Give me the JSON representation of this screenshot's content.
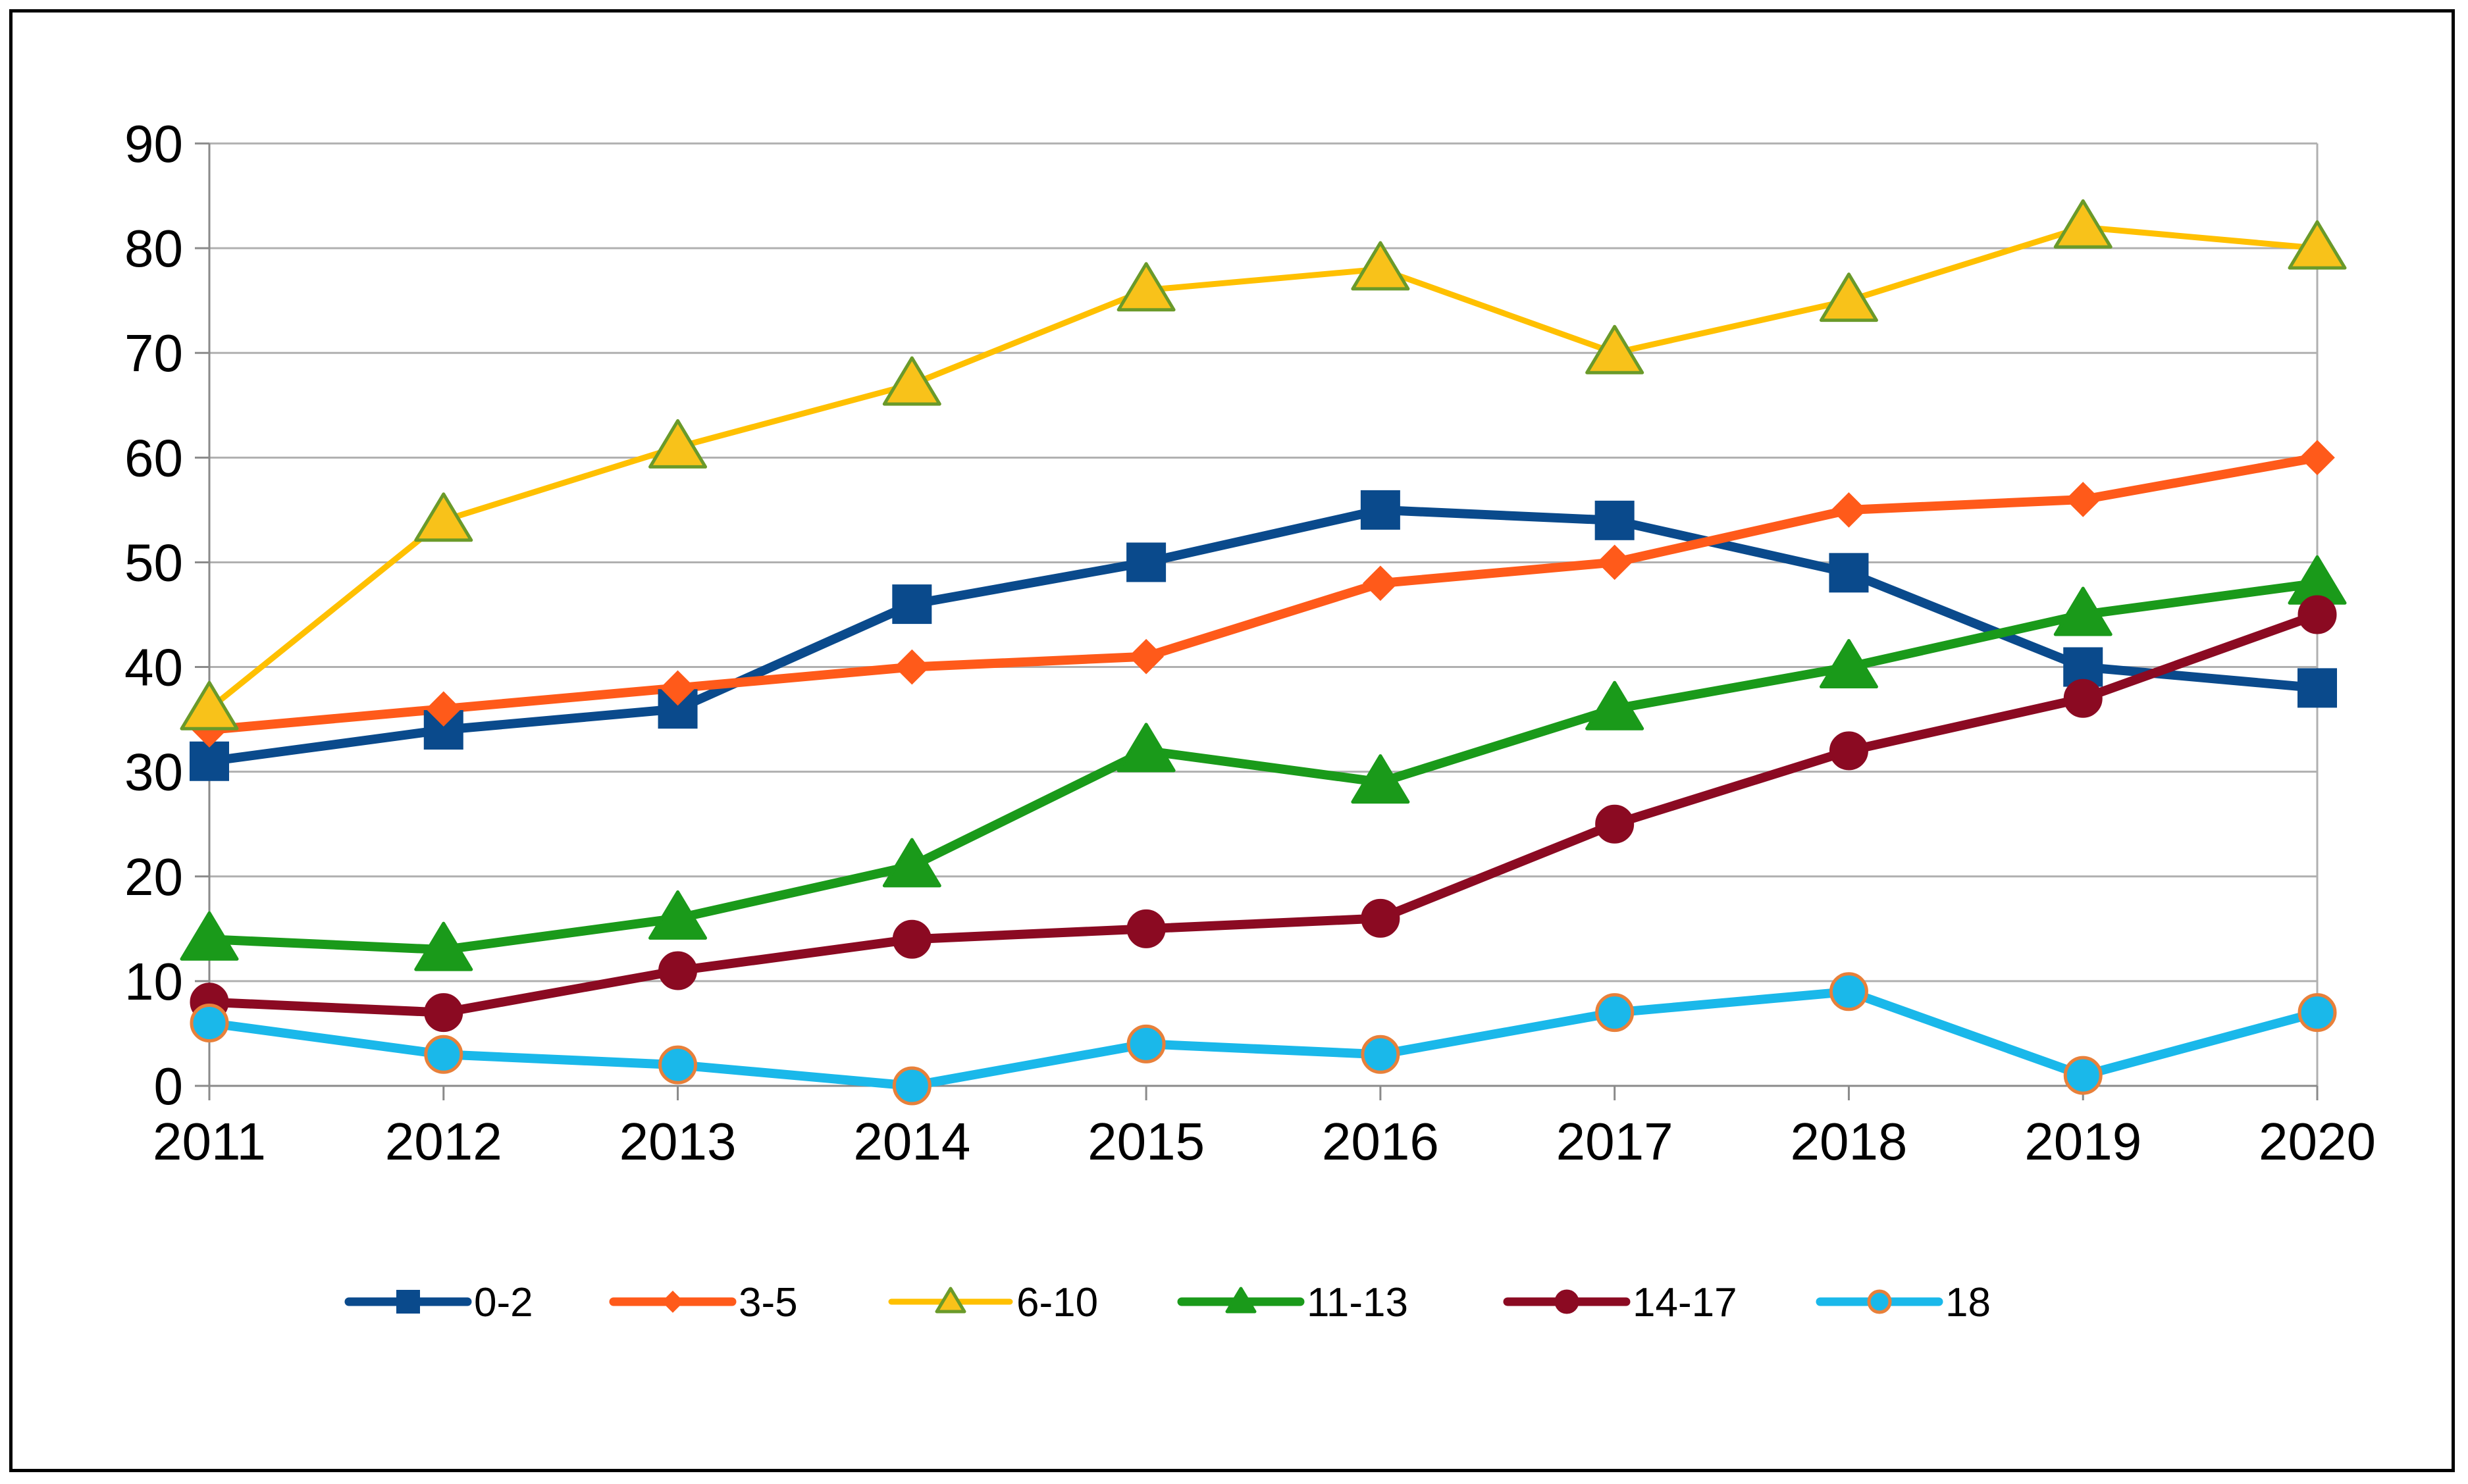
{
  "chart_data": {
    "type": "line",
    "title": "",
    "xlabel": "",
    "ylabel": "",
    "categories": [
      "2011",
      "2012",
      "2013",
      "2014",
      "2015",
      "2016",
      "2017",
      "2018",
      "2019",
      "2020"
    ],
    "ylim": [
      0,
      90
    ],
    "yticks": [
      0,
      10,
      20,
      30,
      40,
      50,
      60,
      70,
      80,
      90
    ],
    "yticklabels": [
      "0",
      "10",
      "20",
      "30",
      "40",
      "50",
      "60",
      "70",
      "80",
      "90"
    ],
    "grid": true,
    "legend_position": "bottom",
    "series": [
      {
        "name": "0-2",
        "values": [
          31,
          34,
          36,
          46,
          50,
          55,
          54,
          49,
          40,
          38
        ],
        "color": "#0a4a8c",
        "marker": "square",
        "marker_fill": "#0a4a8c",
        "marker_stroke": "#0a4a8c"
      },
      {
        "name": "3-5",
        "values": [
          34,
          36,
          38,
          40,
          41,
          48,
          50,
          55,
          56,
          60
        ],
        "color": "#ff5a1a",
        "marker": "diamond",
        "marker_fill": "#ff5a1a",
        "marker_stroke": "#ff5a1a"
      },
      {
        "name": "6-10",
        "values": [
          36,
          54,
          61,
          67,
          76,
          78,
          70,
          75,
          82,
          80
        ],
        "color": "#ffc000",
        "marker": "triangle",
        "marker_fill": "#f8c21a",
        "marker_stroke": "#6a9a2a"
      },
      {
        "name": "11-13",
        "values": [
          14,
          13,
          16,
          21,
          32,
          29,
          36,
          40,
          45,
          48
        ],
        "color": "#1a9a1a",
        "marker": "triangle",
        "marker_fill": "#1a9a1a",
        "marker_stroke": "#1a9a1a"
      },
      {
        "name": "14-17",
        "values": [
          8,
          7,
          11,
          14,
          15,
          16,
          25,
          32,
          37,
          45
        ],
        "color": "#8b0a22",
        "marker": "circle",
        "marker_fill": "#8b0a22",
        "marker_stroke": "#8b0a22"
      },
      {
        "name": "18",
        "values": [
          6,
          3,
          2,
          0,
          4,
          3,
          7,
          9,
          1,
          7
        ],
        "color": "#1ab8ea",
        "marker": "circle",
        "marker_fill": "#1ab8ea",
        "marker_stroke": "#e8803a"
      }
    ]
  }
}
